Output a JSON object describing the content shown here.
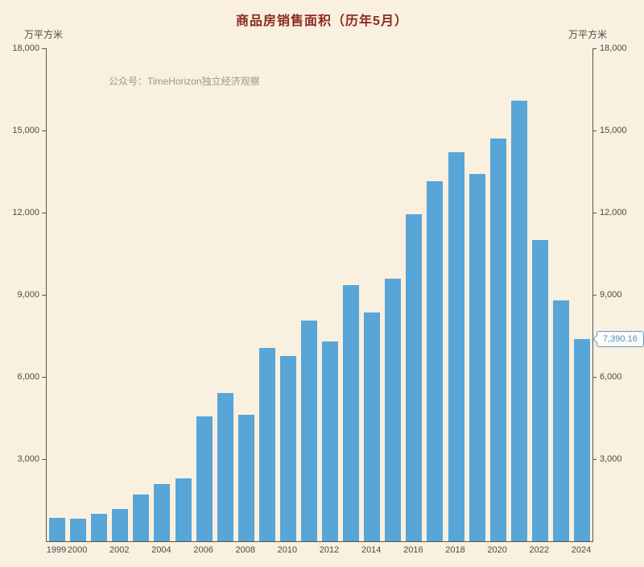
{
  "chart_data": {
    "type": "bar",
    "title": "商品房销售面积（历年5月）",
    "unit_left": "万平方米",
    "unit_right": "万平方米",
    "watermark": "公众号：TimeHorizon独立经济观察",
    "categories": [
      1999,
      2000,
      2001,
      2002,
      2003,
      2004,
      2005,
      2006,
      2007,
      2008,
      2009,
      2010,
      2011,
      2012,
      2013,
      2014,
      2015,
      2016,
      2017,
      2018,
      2019,
      2020,
      2021,
      2022,
      2023,
      2024
    ],
    "values": [
      850,
      820,
      1000,
      1190,
      1700,
      2100,
      2280,
      4560,
      5400,
      4620,
      7050,
      6760,
      8050,
      7300,
      9350,
      8350,
      9600,
      11950,
      13150,
      14200,
      13400,
      14700,
      16100,
      11000,
      8800,
      7390.16
    ],
    "x_tick_labels": [
      "1999",
      "2000",
      "2002",
      "2004",
      "2006",
      "2008",
      "2010",
      "2012",
      "2014",
      "2016",
      "2018",
      "2020",
      "2022",
      "2024"
    ],
    "y_ticks": [
      3000,
      6000,
      9000,
      12000,
      15000,
      18000
    ],
    "ylim": [
      0,
      18000
    ],
    "grid": "off",
    "legend": "none",
    "colors": {
      "background": "#faf0df",
      "bar": "#58a5d8",
      "title": "#8b2a20",
      "axis": "#555555",
      "callout_border": "#5b9bd5",
      "callout_text": "#4a90d2"
    },
    "callout": {
      "value": "7,390.16",
      "year": "2024"
    }
  }
}
